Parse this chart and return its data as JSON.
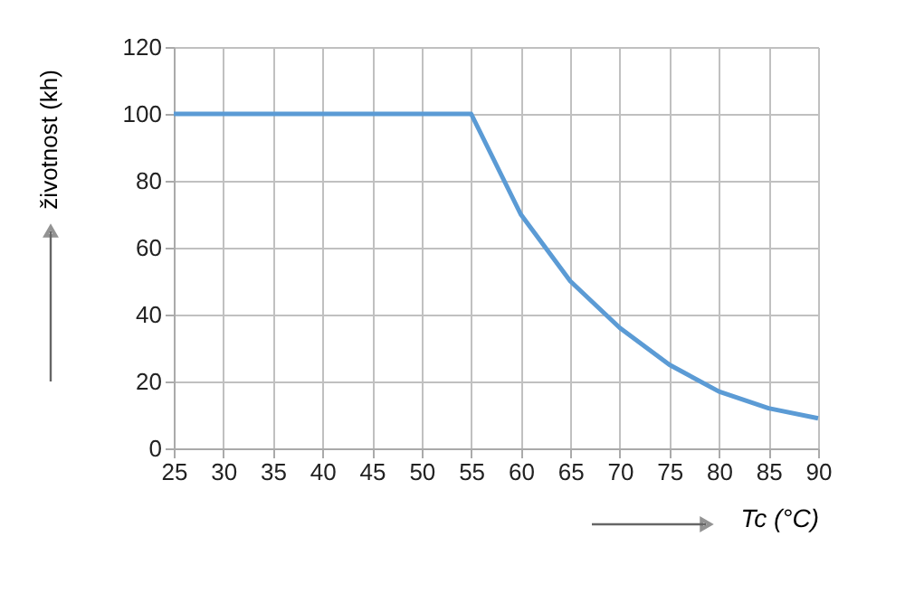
{
  "chart_data": {
    "type": "line",
    "xlabel": "Tc (°C)",
    "ylabel": "životnost (kh)",
    "x": [
      25,
      30,
      35,
      40,
      45,
      50,
      55,
      60,
      65,
      70,
      75,
      80,
      85,
      90
    ],
    "series": [
      {
        "color": "#5b9bd5",
        "values": [
          100,
          100,
          100,
          100,
          100,
          100,
          100,
          70,
          50,
          36,
          25,
          17,
          12,
          9
        ]
      }
    ],
    "xlim": [
      25,
      90
    ],
    "xticks": [
      25,
      30,
      35,
      40,
      45,
      50,
      55,
      60,
      65,
      70,
      75,
      80,
      85,
      90
    ],
    "ylim": [
      0,
      120
    ],
    "yticks": [
      0,
      20,
      40,
      60,
      80,
      100,
      120
    ],
    "grid": true,
    "marker": "none",
    "line_style": "solid"
  }
}
